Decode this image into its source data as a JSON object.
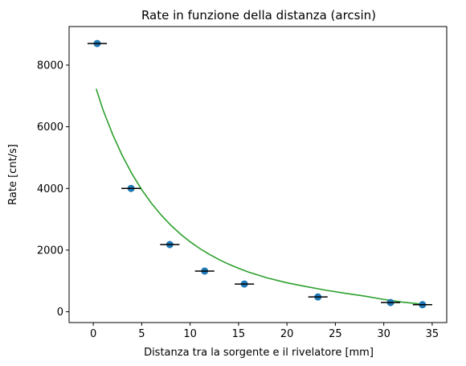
{
  "chart_data": {
    "type": "scatter",
    "title": "Rate in funzione della distanza (arcsin)",
    "xlabel": "Distanza tra la sorgente e il rivelatore [mm]",
    "ylabel": "Rate [cnt/s]",
    "xlim": [
      -2.5,
      36.5
    ],
    "ylim": [
      -350,
      9250
    ],
    "xticks": [
      0,
      5,
      10,
      15,
      20,
      25,
      30,
      35
    ],
    "yticks": [
      0,
      2000,
      4000,
      6000,
      8000
    ],
    "grid": false,
    "legend": "none",
    "series": [
      {
        "kind": "points",
        "color": "#1f77b4",
        "x": [
          0.4,
          3.9,
          7.9,
          11.5,
          15.6,
          23.2,
          30.7,
          34.0
        ],
        "y": [
          8700,
          4000,
          2180,
          1320,
          900,
          480,
          300,
          230
        ],
        "xerr": [
          1.0,
          1.0,
          1.0,
          1.0,
          1.0,
          1.0,
          1.0,
          1.0
        ],
        "errorbar_color": "#000000"
      },
      {
        "kind": "fit",
        "color": "#2ca02c",
        "x": [
          0.3,
          1,
          2,
          3,
          4,
          5,
          6,
          7,
          8,
          9,
          10,
          11,
          12,
          13,
          14,
          15,
          16,
          18,
          20,
          22,
          24,
          26,
          28,
          30,
          32,
          34.2
        ],
        "y": [
          7230,
          6550,
          5750,
          5060,
          4470,
          3960,
          3520,
          3140,
          2810,
          2520,
          2270,
          2050,
          1860,
          1690,
          1540,
          1410,
          1290,
          1095,
          940,
          815,
          700,
          600,
          510,
          400,
          310,
          240
        ]
      }
    ]
  }
}
